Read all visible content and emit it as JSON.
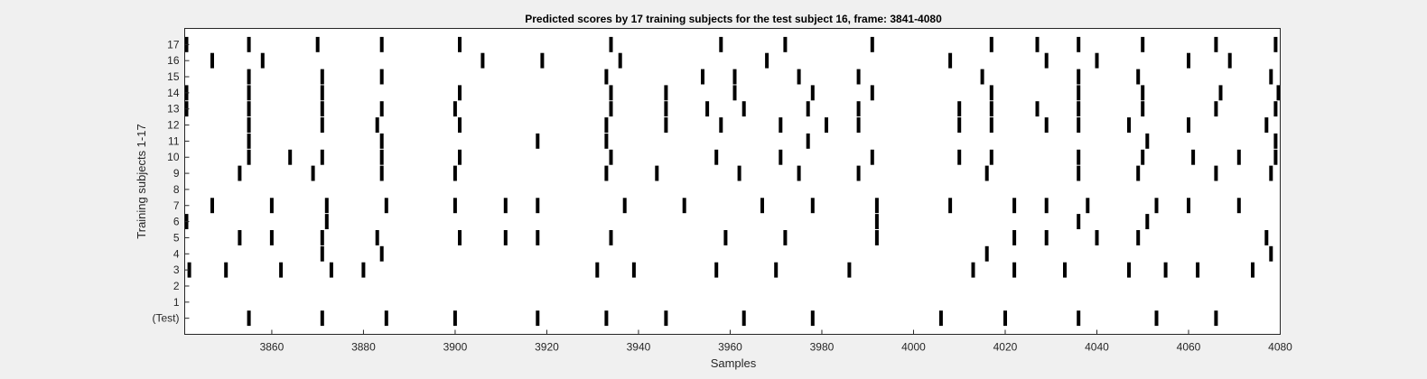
{
  "chart_data": {
    "type": "raster",
    "title": "Predicted scores by 17 training subjects for the test subject 16, frame: 3841-4080",
    "xlabel": "Samples",
    "ylabel": "Training subjects 1-17",
    "xlim": [
      3841,
      4080
    ],
    "xticks": [
      3860,
      3880,
      3900,
      3920,
      3940,
      3960,
      3980,
      4000,
      4020,
      4040,
      4060,
      4080
    ],
    "rows": [
      {
        "label": "(Test)",
        "events": [
          3855,
          3871,
          3885,
          3900,
          3918,
          3933,
          3946,
          3963,
          3978,
          4006,
          4020,
          4036,
          4053,
          4066
        ]
      },
      {
        "label": "1",
        "events": []
      },
      {
        "label": "2",
        "events": []
      },
      {
        "label": "3",
        "events": [
          3842,
          3850,
          3862,
          3873,
          3880,
          3931,
          3939,
          3957,
          3970,
          3986,
          4013,
          4022,
          4033,
          4047,
          4055,
          4062,
          4074
        ]
      },
      {
        "label": "4",
        "events": [
          3871,
          3884,
          4016,
          4078
        ]
      },
      {
        "label": "5",
        "events": [
          3853,
          3860,
          3871,
          3883,
          3901,
          3911,
          3918,
          3934,
          3959,
          3972,
          3992,
          4022,
          4029,
          4040,
          4049,
          4077
        ]
      },
      {
        "label": "6",
        "events": [
          3841,
          3872,
          3992,
          4036,
          4051
        ]
      },
      {
        "label": "7",
        "events": [
          3847,
          3860,
          3872,
          3885,
          3900,
          3911,
          3918,
          3937,
          3950,
          3967,
          3978,
          3992,
          4008,
          4022,
          4029,
          4038,
          4053,
          4060,
          4071
        ]
      },
      {
        "label": "8",
        "events": []
      },
      {
        "label": "9",
        "events": [
          3853,
          3869,
          3884,
          3900,
          3933,
          3944,
          3962,
          3975,
          3988,
          4016,
          4036,
          4049,
          4066,
          4078
        ]
      },
      {
        "label": "10",
        "events": [
          3855,
          3864,
          3871,
          3884,
          3901,
          3934,
          3957,
          3971,
          3991,
          4010,
          4017,
          4036,
          4050,
          4061,
          4071,
          4079
        ]
      },
      {
        "label": "11",
        "events": [
          3855,
          3884,
          3918,
          3933,
          3977,
          4051,
          4079
        ]
      },
      {
        "label": "12",
        "events": [
          3855,
          3871,
          3883,
          3901,
          3933,
          3946,
          3958,
          3971,
          3981,
          3988,
          4010,
          4017,
          4029,
          4036,
          4047,
          4060,
          4077
        ]
      },
      {
        "label": "13",
        "events": [
          3841,
          3855,
          3871,
          3884,
          3900,
          3934,
          3946,
          3955,
          3963,
          3977,
          3988,
          4010,
          4017,
          4027,
          4036,
          4050,
          4066,
          4079
        ]
      },
      {
        "label": "14",
        "events": [
          3841,
          3855,
          3871,
          3901,
          3934,
          3946,
          3961,
          3978,
          3991,
          4017,
          4036,
          4050,
          4067,
          4080
        ]
      },
      {
        "label": "15",
        "events": [
          3855,
          3871,
          3884,
          3933,
          3954,
          3961,
          3975,
          3988,
          4015,
          4036,
          4049,
          4078
        ]
      },
      {
        "label": "16",
        "events": [
          3847,
          3858,
          3906,
          3919,
          3936,
          3968,
          4008,
          4029,
          4040,
          4060,
          4069
        ]
      },
      {
        "label": "17",
        "events": [
          3841,
          3855,
          3870,
          3884,
          3901,
          3934,
          3958,
          3972,
          3991,
          4017,
          4027,
          4036,
          4050,
          4066,
          4079
        ]
      }
    ],
    "grid": false,
    "legend": "none"
  }
}
